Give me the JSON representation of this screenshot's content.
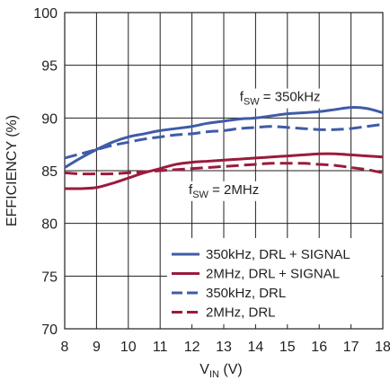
{
  "chart_data": {
    "type": "line",
    "xlabel": {
      "main": "V",
      "sub": "IN",
      "unit": " (V)"
    },
    "ylabel": "EFFICIENCY (%)",
    "xlim": [
      8,
      18
    ],
    "ylim": [
      70,
      100
    ],
    "x_ticks": [
      "8",
      "9",
      "10",
      "11",
      "12",
      "13",
      "14",
      "15",
      "16",
      "17",
      "18"
    ],
    "y_ticks": [
      "70",
      "75",
      "80",
      "85",
      "90",
      "95",
      "100"
    ],
    "grid": true,
    "legend_position": "bottom-right",
    "annotations": [
      {
        "pre": "f",
        "sub": "SW",
        "post": " = 350kHz",
        "at": [
          13.5,
          91.6
        ]
      },
      {
        "pre": "f",
        "sub": "SW",
        "post": " = 2MHz",
        "at": [
          11.9,
          82.8
        ]
      }
    ],
    "colors": {
      "blue": "#3f5ba9",
      "red": "#9b1b3c",
      "grid": "#231f20"
    },
    "series": [
      {
        "name": "350kHz, DRL + SIGNAL",
        "color": "#3f5ba9",
        "dash": false,
        "x": [
          8,
          8.5,
          9,
          9.5,
          10,
          10.5,
          11,
          11.5,
          12,
          12.5,
          13,
          13.5,
          14,
          14.5,
          15,
          15.5,
          16,
          16.5,
          17,
          17.5,
          18
        ],
        "y": [
          85.3,
          86.2,
          87.0,
          87.7,
          88.2,
          88.5,
          88.8,
          89.0,
          89.2,
          89.5,
          89.7,
          89.9,
          90.0,
          90.2,
          90.4,
          90.5,
          90.6,
          90.8,
          91.0,
          90.9,
          90.5
        ]
      },
      {
        "name": "2MHz, DRL + SIGNAL",
        "color": "#9b1b3c",
        "dash": false,
        "x": [
          8,
          8.5,
          9,
          9.5,
          10,
          10.5,
          11,
          11.5,
          12,
          12.5,
          13,
          13.5,
          14,
          14.5,
          15,
          15.5,
          16,
          16.5,
          17,
          17.5,
          18
        ],
        "y": [
          83.3,
          83.3,
          83.4,
          83.8,
          84.3,
          84.8,
          85.2,
          85.6,
          85.8,
          85.9,
          86.0,
          86.1,
          86.2,
          86.3,
          86.4,
          86.5,
          86.6,
          86.6,
          86.5,
          86.4,
          86.3
        ]
      },
      {
        "name": "350kHz, DRL",
        "color": "#3f5ba9",
        "dash": true,
        "x": [
          8,
          8.5,
          9,
          9.5,
          10,
          10.5,
          11,
          11.5,
          12,
          12.5,
          13,
          13.5,
          14,
          14.5,
          15,
          15.5,
          16,
          16.5,
          17,
          17.5,
          18
        ],
        "y": [
          86.2,
          86.6,
          87.0,
          87.4,
          87.7,
          88.0,
          88.2,
          88.4,
          88.5,
          88.7,
          88.8,
          89.0,
          89.1,
          89.2,
          89.1,
          89.0,
          88.9,
          88.9,
          89.0,
          89.2,
          89.4
        ]
      },
      {
        "name": "2MHz, DRL",
        "color": "#9b1b3c",
        "dash": true,
        "x": [
          8,
          8.5,
          9,
          9.5,
          10,
          10.5,
          11,
          11.5,
          12,
          12.5,
          13,
          13.5,
          14,
          14.5,
          15,
          15.5,
          16,
          16.5,
          17,
          17.5,
          18
        ],
        "y": [
          84.8,
          84.7,
          84.7,
          84.7,
          84.8,
          84.9,
          85.0,
          85.1,
          85.2,
          85.3,
          85.4,
          85.5,
          85.6,
          85.7,
          85.7,
          85.7,
          85.6,
          85.5,
          85.3,
          85.1,
          84.8
        ]
      }
    ]
  }
}
